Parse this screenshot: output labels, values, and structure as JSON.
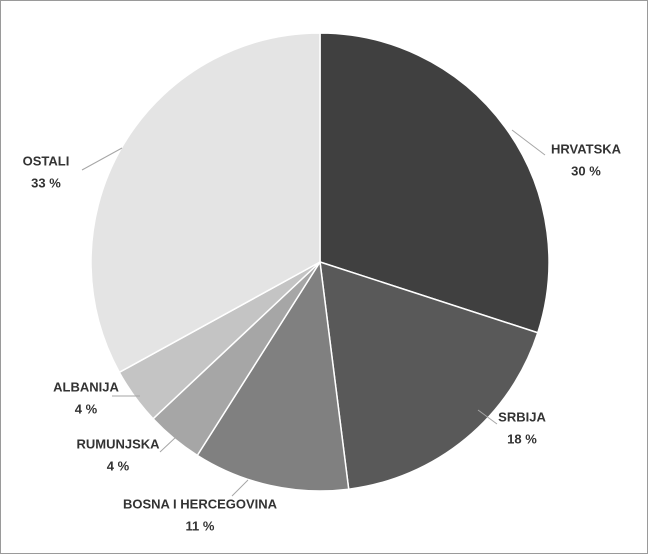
{
  "chart_data": {
    "type": "pie",
    "categories": [
      "HRVATSKA",
      "SRBIJA",
      "BOSNA I HERCEGOVINA",
      "RUMUNJSKA",
      "ALBANIJA",
      "OSTALI"
    ],
    "values": [
      30,
      18,
      11,
      4,
      4,
      33
    ],
    "value_labels": [
      "30 %",
      "18 %",
      "11 %",
      "4 %",
      "4 %",
      "33 %"
    ],
    "colors": [
      "#404040",
      "#595959",
      "#808080",
      "#a6a6a6",
      "#c4c4c4",
      "#e4e4e4"
    ]
  }
}
